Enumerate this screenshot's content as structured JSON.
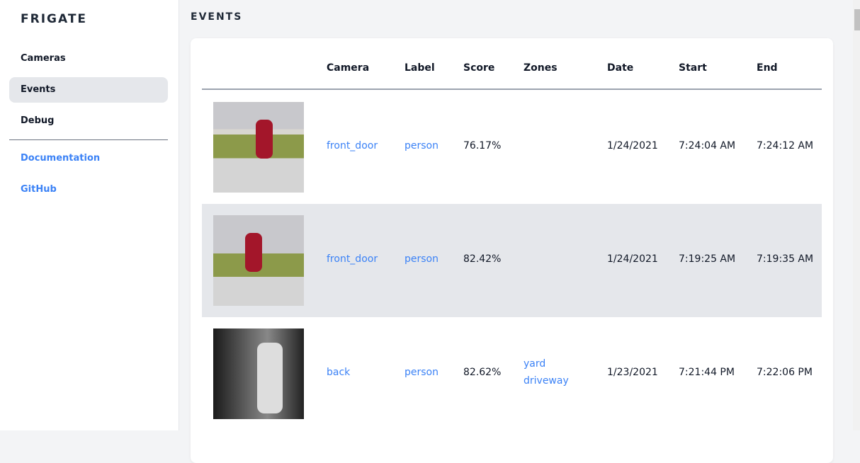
{
  "sidebar": {
    "brand": "FRIGATE",
    "items": [
      {
        "label": "Cameras"
      },
      {
        "label": "Events"
      },
      {
        "label": "Debug"
      }
    ],
    "links": [
      {
        "label": "Documentation"
      },
      {
        "label": "GitHub"
      }
    ]
  },
  "page": {
    "title": "EVENTS"
  },
  "table": {
    "headers": [
      "Camera",
      "Label",
      "Score",
      "Zones",
      "Date",
      "Start",
      "End"
    ],
    "rows": [
      {
        "camera": "front_door",
        "label": "person",
        "score": "76.17%",
        "zones": [
          "",
          ""
        ],
        "date": "1/24/2021",
        "start": "7:24:04 AM",
        "end": "7:24:12 AM"
      },
      {
        "camera": "front_door",
        "label": "person",
        "score": "82.42%",
        "zones": [
          "",
          ""
        ],
        "date": "1/24/2021",
        "start": "7:19:25 AM",
        "end": "7:19:35 AM"
      },
      {
        "camera": "back",
        "label": "person",
        "score": "82.62%",
        "zones": [
          "yard",
          "driveway"
        ],
        "date": "1/23/2021",
        "start": "7:21:44 PM",
        "end": "7:22:06 PM"
      }
    ]
  }
}
